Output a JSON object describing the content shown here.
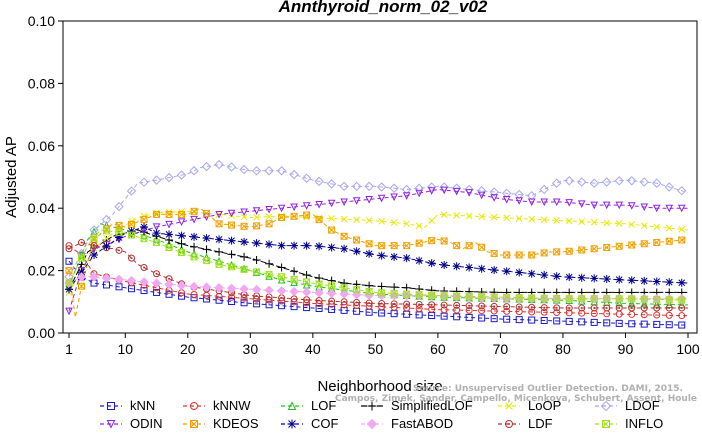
{
  "chart_data": {
    "type": "line",
    "title": "Annthyroid_norm_02_v02",
    "xlabel": "Neighborhood size",
    "ylabel": "Adjusted AP",
    "xlim": [
      0,
      100
    ],
    "ylim": [
      0,
      0.1
    ],
    "x_ticks": [
      "1",
      "10",
      "20",
      "30",
      "40",
      "50",
      "60",
      "70",
      "80",
      "90",
      "100"
    ],
    "y_ticks": [
      "0.00",
      "0.02",
      "0.04",
      "0.06",
      "0.08",
      "0.10"
    ],
    "grid": false,
    "legend_position": "bottom",
    "watermark": [
      "Source: Unsupervised Outlier Detection. DAMI, 2015.",
      "Campos, Zimek, Sander, Campello, Micenkova, Schubert, Assent, Houle"
    ],
    "series": [
      {
        "name": "kNN",
        "color": "#1a1acc",
        "marker": "square",
        "dash": "4,3",
        "points": [
          [
            1,
            0.023
          ],
          [
            3,
            0.018
          ],
          [
            5,
            0.016
          ],
          [
            10,
            0.0145
          ],
          [
            20,
            0.0115
          ],
          [
            30,
            0.0095
          ],
          [
            40,
            0.008
          ],
          [
            50,
            0.0065
          ],
          [
            60,
            0.0055
          ],
          [
            70,
            0.0045
          ],
          [
            80,
            0.0038
          ],
          [
            90,
            0.003
          ],
          [
            100,
            0.0025
          ]
        ]
      },
      {
        "name": "kNNW",
        "color": "#e03030",
        "marker": "circle",
        "dash": "4,3",
        "points": [
          [
            1,
            0.028
          ],
          [
            3,
            0.025
          ],
          [
            5,
            0.019
          ],
          [
            10,
            0.0165
          ],
          [
            20,
            0.0125
          ],
          [
            30,
            0.011
          ],
          [
            40,
            0.0095
          ],
          [
            50,
            0.0085
          ],
          [
            60,
            0.0075
          ],
          [
            70,
            0.007
          ],
          [
            80,
            0.0065
          ],
          [
            90,
            0.006
          ],
          [
            100,
            0.0055
          ]
        ]
      },
      {
        "name": "LOF",
        "color": "#20c020",
        "marker": "triangle-up",
        "dash": "4,3",
        "points": [
          [
            1,
            0.015
          ],
          [
            4,
            0.03
          ],
          [
            6,
            0.035
          ],
          [
            10,
            0.033
          ],
          [
            15,
            0.03
          ],
          [
            20,
            0.026
          ],
          [
            25,
            0.023
          ],
          [
            30,
            0.02
          ],
          [
            35,
            0.017
          ],
          [
            40,
            0.015
          ],
          [
            50,
            0.0125
          ],
          [
            60,
            0.0115
          ],
          [
            70,
            0.011
          ],
          [
            80,
            0.0105
          ],
          [
            90,
            0.0095
          ],
          [
            100,
            0.009
          ]
        ]
      },
      {
        "name": "SimplifiedLOF",
        "color": "#000000",
        "marker": "plus",
        "dash": "6,2",
        "points": [
          [
            1,
            0.014
          ],
          [
            4,
            0.026
          ],
          [
            8,
            0.031
          ],
          [
            12,
            0.033
          ],
          [
            15,
            0.031
          ],
          [
            20,
            0.028
          ],
          [
            25,
            0.026
          ],
          [
            30,
            0.024
          ],
          [
            35,
            0.021
          ],
          [
            40,
            0.018
          ],
          [
            45,
            0.016
          ],
          [
            50,
            0.015
          ],
          [
            55,
            0.0145
          ],
          [
            60,
            0.0135
          ],
          [
            70,
            0.013
          ],
          [
            80,
            0.013
          ],
          [
            90,
            0.013
          ],
          [
            100,
            0.013
          ]
        ]
      },
      {
        "name": "LoOP",
        "color": "#e8e800",
        "marker": "x",
        "dash": "4,3",
        "points": [
          [
            1,
            0.013
          ],
          [
            5,
            0.027
          ],
          [
            8,
            0.032
          ],
          [
            12,
            0.037
          ],
          [
            15,
            0.0385
          ],
          [
            20,
            0.039
          ],
          [
            25,
            0.038
          ],
          [
            30,
            0.037
          ],
          [
            35,
            0.0375
          ],
          [
            40,
            0.037
          ],
          [
            45,
            0.0365
          ],
          [
            50,
            0.036
          ],
          [
            55,
            0.035
          ],
          [
            58,
            0.034
          ],
          [
            60,
            0.038
          ],
          [
            70,
            0.037
          ],
          [
            80,
            0.036
          ],
          [
            90,
            0.035
          ],
          [
            100,
            0.033
          ]
        ]
      },
      {
        "name": "LDOF",
        "color": "#a8a8f0",
        "marker": "diamond",
        "dash": "4,3",
        "points": [
          [
            1,
            0.018
          ],
          [
            5,
            0.033
          ],
          [
            8,
            0.038
          ],
          [
            10,
            0.043
          ],
          [
            12,
            0.048
          ],
          [
            15,
            0.049
          ],
          [
            20,
            0.051
          ],
          [
            22,
            0.053
          ],
          [
            25,
            0.054
          ],
          [
            30,
            0.052
          ],
          [
            35,
            0.052
          ],
          [
            40,
            0.049
          ],
          [
            45,
            0.047
          ],
          [
            50,
            0.047
          ],
          [
            55,
            0.046
          ],
          [
            60,
            0.047
          ],
          [
            65,
            0.046
          ],
          [
            70,
            0.045
          ],
          [
            75,
            0.044
          ],
          [
            80,
            0.049
          ],
          [
            85,
            0.048
          ],
          [
            90,
            0.049
          ],
          [
            95,
            0.048
          ],
          [
            100,
            0.045
          ]
        ]
      },
      {
        "name": "ODIN",
        "color": "#9020e0",
        "marker": "triangle-down",
        "dash": "4,3",
        "points": [
          [
            1,
            0.007
          ],
          [
            3,
            0.02
          ],
          [
            5,
            0.027
          ],
          [
            8,
            0.029
          ],
          [
            10,
            0.031
          ],
          [
            15,
            0.034
          ],
          [
            20,
            0.036
          ],
          [
            25,
            0.038
          ],
          [
            30,
            0.039
          ],
          [
            35,
            0.04
          ],
          [
            40,
            0.041
          ],
          [
            45,
            0.042
          ],
          [
            50,
            0.043
          ],
          [
            55,
            0.044
          ],
          [
            60,
            0.046
          ],
          [
            65,
            0.045
          ],
          [
            70,
            0.043
          ],
          [
            75,
            0.042
          ],
          [
            80,
            0.042
          ],
          [
            85,
            0.041
          ],
          [
            90,
            0.041
          ],
          [
            95,
            0.04
          ],
          [
            100,
            0.04
          ]
        ]
      },
      {
        "name": "KDEOS",
        "color": "#f0a000",
        "marker": "square-x",
        "dash": "4,3",
        "points": [
          [
            1,
            0.02
          ],
          [
            2,
            0.005
          ],
          [
            3,
            0.015
          ],
          [
            5,
            0.03
          ],
          [
            8,
            0.035
          ],
          [
            10,
            0.034
          ],
          [
            15,
            0.038
          ],
          [
            20,
            0.038
          ],
          [
            22,
            0.04
          ],
          [
            25,
            0.035
          ],
          [
            30,
            0.034
          ],
          [
            33,
            0.035
          ],
          [
            35,
            0.037
          ],
          [
            40,
            0.038
          ],
          [
            43,
            0.033
          ],
          [
            45,
            0.031
          ],
          [
            50,
            0.028
          ],
          [
            55,
            0.028
          ],
          [
            60,
            0.03
          ],
          [
            62,
            0.029
          ],
          [
            64,
            0.027
          ],
          [
            66,
            0.029
          ],
          [
            68,
            0.026
          ],
          [
            70,
            0.025
          ],
          [
            75,
            0.025
          ],
          [
            78,
            0.026
          ],
          [
            80,
            0.026
          ],
          [
            85,
            0.027
          ],
          [
            90,
            0.028
          ],
          [
            95,
            0.029
          ],
          [
            100,
            0.03
          ]
        ]
      },
      {
        "name": "LDF",
        "color": "#b03030",
        "marker": "circle-dot",
        "dash": "4,3",
        "points": [
          [
            1,
            0.027
          ],
          [
            3,
            0.029
          ],
          [
            5,
            0.028
          ],
          [
            8,
            0.027
          ],
          [
            10,
            0.026
          ],
          [
            12,
            0.022
          ],
          [
            15,
            0.019
          ],
          [
            20,
            0.015
          ],
          [
            30,
            0.012
          ],
          [
            40,
            0.0105
          ],
          [
            50,
            0.0095
          ],
          [
            60,
            0.009
          ],
          [
            70,
            0.0085
          ],
          [
            80,
            0.008
          ],
          [
            90,
            0.008
          ],
          [
            100,
            0.008
          ]
        ]
      },
      {
        "name": "COF",
        "color": "#00008b",
        "marker": "star",
        "dash": "4,3",
        "points": [
          [
            1,
            0.014
          ],
          [
            5,
            0.025
          ],
          [
            10,
            0.032
          ],
          [
            13,
            0.034
          ],
          [
            15,
            0.032
          ],
          [
            20,
            0.031
          ],
          [
            25,
            0.03
          ],
          [
            30,
            0.029
          ],
          [
            35,
            0.028
          ],
          [
            40,
            0.028
          ],
          [
            45,
            0.027
          ],
          [
            50,
            0.025
          ],
          [
            55,
            0.024
          ],
          [
            60,
            0.022
          ],
          [
            65,
            0.021
          ],
          [
            70,
            0.02
          ],
          [
            75,
            0.019
          ],
          [
            80,
            0.018
          ],
          [
            85,
            0.0175
          ],
          [
            90,
            0.017
          ],
          [
            95,
            0.0165
          ],
          [
            100,
            0.016
          ]
        ]
      },
      {
        "name": "FastABOD",
        "color": "#f0a8f0",
        "marker": "diamond-filled",
        "dash": "4,3",
        "points": [
          [
            1,
            0.016
          ],
          [
            3,
            0.018
          ],
          [
            5,
            0.018
          ],
          [
            10,
            0.017
          ],
          [
            15,
            0.016
          ],
          [
            20,
            0.015
          ],
          [
            30,
            0.014
          ],
          [
            40,
            0.013
          ],
          [
            50,
            0.012
          ],
          [
            60,
            0.012
          ],
          [
            70,
            0.011
          ],
          [
            80,
            0.011
          ],
          [
            90,
            0.011
          ],
          [
            100,
            0.011
          ]
        ]
      },
      {
        "name": "INFLO",
        "color": "#a0e020",
        "marker": "square-x",
        "dash": "4,3",
        "points": [
          [
            1,
            0.016
          ],
          [
            4,
            0.028
          ],
          [
            6,
            0.033
          ],
          [
            10,
            0.032
          ],
          [
            15,
            0.029
          ],
          [
            20,
            0.025
          ],
          [
            25,
            0.022
          ],
          [
            30,
            0.02
          ],
          [
            35,
            0.018
          ],
          [
            40,
            0.016
          ],
          [
            50,
            0.013
          ],
          [
            60,
            0.012
          ],
          [
            70,
            0.0115
          ],
          [
            80,
            0.011
          ],
          [
            90,
            0.011
          ],
          [
            100,
            0.0105
          ]
        ]
      }
    ],
    "legend_rows": [
      [
        "kNN",
        "kNNW",
        "LOF",
        "SimplifiedLOF",
        "LoOP",
        "LDOF"
      ],
      [
        "ODIN",
        "KDEOS",
        "COF",
        "FastABOD",
        "LDF",
        "INFLO"
      ]
    ]
  }
}
